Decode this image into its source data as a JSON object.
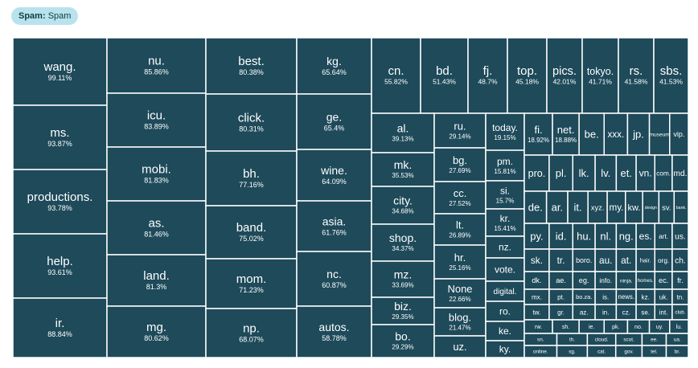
{
  "legend": {
    "key": "Spam:",
    "value": "Spam",
    "fill_color": "#1e4a5a",
    "border_color": "#ffffff",
    "badge_color": "#b9e3ec"
  },
  "chart_data": {
    "type": "treemap",
    "series_name": "Spam",
    "columns": [
      {
        "cells": [
          {
            "label": "wang.",
            "value": "99.11%"
          },
          {
            "label": "ms.",
            "value": "93.87%"
          },
          {
            "label": "productions.",
            "value": "93.78%"
          },
          {
            "label": "help.",
            "value": "93.61%"
          },
          {
            "label": "ir.",
            "value": "88.84%"
          }
        ]
      },
      {
        "cells": [
          {
            "label": "nu.",
            "value": "85.86%"
          },
          {
            "label": "icu.",
            "value": "83.89%"
          },
          {
            "label": "mobi.",
            "value": "81.83%"
          },
          {
            "label": "as.",
            "value": "81.46%"
          },
          {
            "label": "land.",
            "value": "81.3%"
          },
          {
            "label": "mg.",
            "value": "80.62%"
          }
        ]
      },
      {
        "cells": [
          {
            "label": "best.",
            "value": "80.38%"
          },
          {
            "label": "click.",
            "value": "80.31%"
          },
          {
            "label": "bh.",
            "value": "77.16%"
          },
          {
            "label": "band.",
            "value": "75.02%"
          },
          {
            "label": "mom.",
            "value": "71.23%"
          },
          {
            "label": "np.",
            "value": "68.07%"
          }
        ]
      },
      {
        "cells": [
          {
            "label": "kg.",
            "value": "65.64%"
          },
          {
            "label": "ge.",
            "value": "65.4%"
          },
          {
            "label": "wine.",
            "value": "64.09%"
          },
          {
            "label": "asia.",
            "value": "61.76%"
          },
          {
            "label": "nc.",
            "value": "60.87%"
          },
          {
            "label": "autos.",
            "value": "58.78%"
          }
        ]
      }
    ],
    "top_row": [
      {
        "label": "cn.",
        "value": "55.82%"
      },
      {
        "label": "bd.",
        "value": "51.43%"
      },
      {
        "label": "fj.",
        "value": "48.7%"
      },
      {
        "label": "top.",
        "value": "45.18%"
      },
      {
        "label": "pics.",
        "value": "42.01%"
      },
      {
        "label": "tokyo.",
        "value": "41.71%"
      },
      {
        "label": "rs.",
        "value": "41.58%"
      },
      {
        "label": "sbs.",
        "value": "41.53%"
      }
    ],
    "mid_columns": [
      {
        "cells": [
          {
            "label": "al.",
            "value": "39.13%"
          },
          {
            "label": "mk.",
            "value": "35.53%"
          },
          {
            "label": "city.",
            "value": "34.68%"
          },
          {
            "label": "shop.",
            "value": "34.37%"
          },
          {
            "label": "mz.",
            "value": "33.69%"
          },
          {
            "label": "biz.",
            "value": "29.35%"
          },
          {
            "label": "bo.",
            "value": "29.29%"
          }
        ]
      },
      {
        "cells": [
          {
            "label": "ru.",
            "value": "29.14%"
          },
          {
            "label": "bg.",
            "value": "27.69%"
          },
          {
            "label": "cc.",
            "value": "27.52%"
          },
          {
            "label": "lt.",
            "value": "26.89%"
          },
          {
            "label": "hr.",
            "value": "25.16%"
          },
          {
            "label": "None",
            "value": "22.66%"
          },
          {
            "label": "blog.",
            "value": "21.47%"
          },
          {
            "label": "uz.",
            "value": ""
          }
        ]
      },
      {
        "cells": [
          {
            "label": "today.",
            "value": "19.15%"
          },
          {
            "label": "pm.",
            "value": "15.81%"
          },
          {
            "label": "si.",
            "value": "15.7%"
          },
          {
            "label": "kr.",
            "value": "15.41%"
          },
          {
            "label": "nz.",
            "value": ""
          },
          {
            "label": "vote.",
            "value": ""
          },
          {
            "label": "digital.",
            "value": ""
          },
          {
            "label": "ro.",
            "value": ""
          },
          {
            "label": "ke.",
            "value": ""
          },
          {
            "label": "ky.",
            "value": ""
          }
        ]
      }
    ],
    "small_cells": [
      {
        "label": "fi.",
        "value": "18.92%"
      },
      {
        "label": "net.",
        "value": "18.88%"
      },
      {
        "label": "be.",
        "value": ""
      },
      {
        "label": "xxx.",
        "value": ""
      },
      {
        "label": "jp.",
        "value": ""
      },
      {
        "label": "museum",
        "value": ""
      },
      {
        "label": "vip.",
        "value": ""
      },
      {
        "label": "pro.",
        "value": ""
      },
      {
        "label": "pl.",
        "value": ""
      },
      {
        "label": "lk.",
        "value": ""
      },
      {
        "label": "lv.",
        "value": ""
      },
      {
        "label": "et.",
        "value": ""
      },
      {
        "label": "vn.",
        "value": ""
      },
      {
        "label": "com.",
        "value": ""
      },
      {
        "label": "md.",
        "value": ""
      },
      {
        "label": "de.",
        "value": ""
      },
      {
        "label": "ar.",
        "value": ""
      },
      {
        "label": "it.",
        "value": ""
      },
      {
        "label": "xyz.",
        "value": ""
      },
      {
        "label": "my.",
        "value": ""
      },
      {
        "label": "kw.",
        "value": ""
      },
      {
        "label": "design",
        "value": ""
      },
      {
        "label": "sv.",
        "value": ""
      },
      {
        "label": "bank.",
        "value": ""
      },
      {
        "label": "py.",
        "value": ""
      },
      {
        "label": "id.",
        "value": ""
      },
      {
        "label": "hu.",
        "value": ""
      },
      {
        "label": "nl.",
        "value": ""
      },
      {
        "label": "ng.",
        "value": ""
      },
      {
        "label": "es.",
        "value": ""
      },
      {
        "label": "art.",
        "value": ""
      },
      {
        "label": "us.",
        "value": ""
      },
      {
        "label": "sk.",
        "value": ""
      },
      {
        "label": "tr.",
        "value": ""
      },
      {
        "label": "boro.",
        "value": ""
      },
      {
        "label": "au.",
        "value": ""
      },
      {
        "label": "at.",
        "value": ""
      },
      {
        "label": "hair.",
        "value": ""
      },
      {
        "label": "org.",
        "value": ""
      },
      {
        "label": "ch.",
        "value": ""
      },
      {
        "label": "dk.",
        "value": ""
      },
      {
        "label": "ae.",
        "value": ""
      },
      {
        "label": "eg.",
        "value": ""
      },
      {
        "label": "info.",
        "value": ""
      },
      {
        "label": "ninja.",
        "value": ""
      },
      {
        "label": "homes.",
        "value": ""
      },
      {
        "label": "ec.",
        "value": ""
      },
      {
        "label": "fr.",
        "value": ""
      },
      {
        "label": "mx.",
        "value": ""
      },
      {
        "label": "pt.",
        "value": ""
      },
      {
        "label": "bo.za.",
        "value": ""
      },
      {
        "label": "is.",
        "value": ""
      },
      {
        "label": "news.",
        "value": ""
      },
      {
        "label": "kz.",
        "value": ""
      },
      {
        "label": "uk.",
        "value": ""
      },
      {
        "label": "tn.",
        "value": ""
      },
      {
        "label": "tw.",
        "value": ""
      },
      {
        "label": "gr.",
        "value": ""
      },
      {
        "label": "az.",
        "value": ""
      },
      {
        "label": "in.",
        "value": ""
      },
      {
        "label": "cz.",
        "value": ""
      },
      {
        "label": "se.",
        "value": ""
      },
      {
        "label": "int.",
        "value": ""
      },
      {
        "label": "club.",
        "value": ""
      },
      {
        "label": "rw.",
        "value": ""
      },
      {
        "label": "sh.",
        "value": ""
      },
      {
        "label": "ie.",
        "value": ""
      },
      {
        "label": "pk.",
        "value": ""
      },
      {
        "label": "no.",
        "value": ""
      },
      {
        "label": "uy.",
        "value": ""
      },
      {
        "label": "lu.",
        "value": ""
      },
      {
        "label": "sn.",
        "value": ""
      },
      {
        "label": "th.",
        "value": ""
      },
      {
        "label": "cloud.",
        "value": ""
      },
      {
        "label": "scot.",
        "value": ""
      },
      {
        "label": "ee.",
        "value": ""
      },
      {
        "label": "ua.",
        "value": ""
      },
      {
        "label": "online.",
        "value": ""
      },
      {
        "label": "sg.",
        "value": ""
      },
      {
        "label": "cat.",
        "value": ""
      },
      {
        "label": "gov.",
        "value": ""
      },
      {
        "label": "tel.",
        "value": ""
      },
      {
        "label": "br.",
        "value": ""
      },
      {
        "label": "hk.",
        "value": ""
      }
    ]
  }
}
